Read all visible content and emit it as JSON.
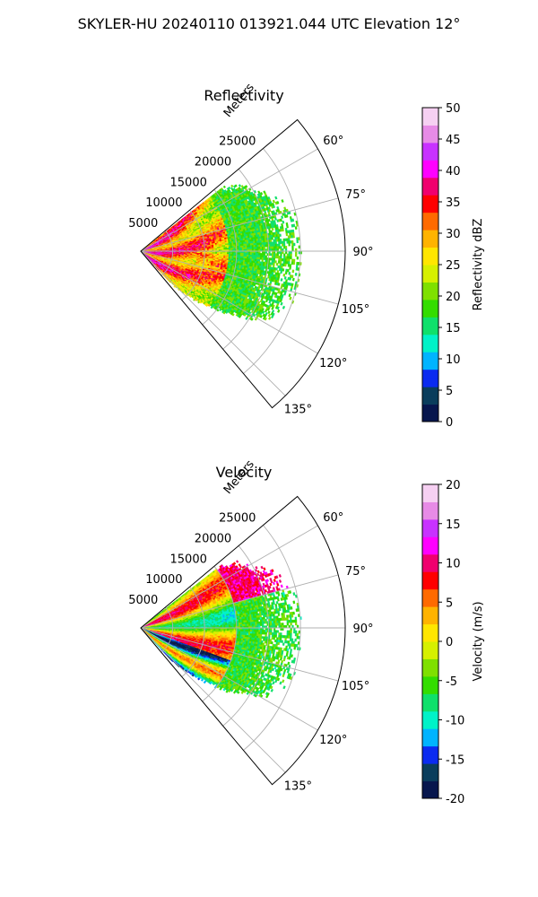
{
  "suptitle": "SKYLER-HU  20240110  013921.044 UTC Elevation 12°",
  "chart_data": [
    {
      "type": "polar-sector",
      "title": "Reflectivity",
      "range_axis_label": "Meters",
      "range_ticks": [
        5000,
        10000,
        15000,
        20000,
        25000
      ],
      "range_max": 32000,
      "data_extent_m": 25000,
      "azimuth_range_deg": [
        50,
        140
      ],
      "azimuth_ticks_deg": [
        60,
        75,
        90,
        105,
        120,
        135
      ],
      "azimuth_tick_labels": [
        "60°",
        "75°",
        "90°",
        "105°",
        "120°",
        "135°"
      ],
      "grid": true,
      "colorbar": {
        "label": "Reflectivity dBZ",
        "min": 0,
        "max": 50,
        "ticks": [
          0,
          5,
          10,
          15,
          20,
          25,
          30,
          35,
          40,
          45,
          50
        ],
        "colormap": [
          "#07164d",
          "#0a3d5c",
          "#0b2bf0",
          "#00b4ff",
          "#00f2c8",
          "#0fe06b",
          "#33dd00",
          "#7fe000",
          "#d6f000",
          "#ffe600",
          "#ffb300",
          "#ff6a00",
          "#ff0000",
          "#f0006e",
          "#ff00ff",
          "#c832ff",
          "#e78be6",
          "#f6d0f2"
        ]
      }
    },
    {
      "type": "polar-sector",
      "title": "Velocity",
      "range_axis_label": "Meters",
      "range_ticks": [
        5000,
        10000,
        15000,
        20000,
        25000
      ],
      "range_max": 32000,
      "data_extent_m": 25000,
      "azimuth_range_deg": [
        50,
        140
      ],
      "azimuth_ticks_deg": [
        60,
        75,
        90,
        105,
        120,
        135
      ],
      "azimuth_tick_labels": [
        "60°",
        "75°",
        "90°",
        "105°",
        "120°",
        "135°"
      ],
      "grid": true,
      "colorbar": {
        "label": "Velocity (m/s)",
        "min": -20,
        "max": 20,
        "ticks": [
          -20,
          -15,
          -10,
          -5,
          0,
          5,
          10,
          15,
          20
        ],
        "colormap": [
          "#07164d",
          "#0a3d5c",
          "#0b2bf0",
          "#00b4ff",
          "#00f2c8",
          "#0fe06b",
          "#33dd00",
          "#7fe000",
          "#d6f000",
          "#ffe600",
          "#ffb300",
          "#ff6a00",
          "#ff0000",
          "#f0006e",
          "#ff00ff",
          "#c832ff",
          "#e78be6",
          "#f6d0f2"
        ]
      }
    }
  ]
}
